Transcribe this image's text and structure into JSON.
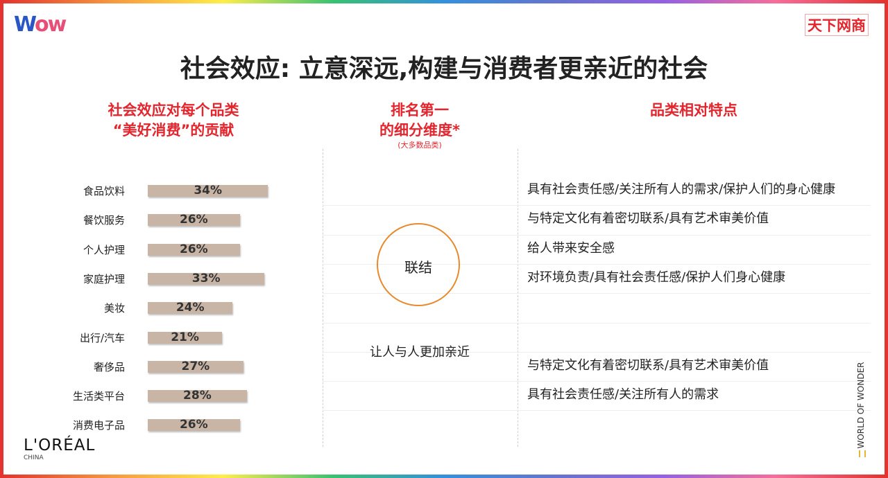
{
  "logos": {
    "wow": "WOW",
    "right": "天下网商",
    "loreal": "L'ORÉAL",
    "loreal_sub": "CHINA",
    "vertical": "WORLD OF WONDER"
  },
  "title": "社会效应: 立意深远,构建与消费者更亲近的社会",
  "headers": {
    "left": [
      "社会效应对每个品类",
      "“美好消费”的贡献"
    ],
    "middle": [
      "排名第一",
      "的细分维度*"
    ],
    "middle_note": "(大多数品类)",
    "right": "品类相对特点"
  },
  "chart_data": {
    "type": "bar",
    "orientation": "horizontal",
    "categories": [
      "食品饮料",
      "餐饮服务",
      "个人护理",
      "家庭护理",
      "美妆",
      "出行/汽车",
      "奢侈品",
      "生活类平台",
      "消费电子品"
    ],
    "values": [
      34,
      26,
      26,
      33,
      24,
      21,
      27,
      28,
      26
    ],
    "labels": [
      "34%",
      "26%",
      "26%",
      "33%",
      "24%",
      "21%",
      "27%",
      "28%",
      "26%"
    ],
    "color": "#c8b5a6"
  },
  "center": {
    "circle_label": "联结",
    "text": "让人与人更加亲近"
  },
  "features": [
    "具有社会责任感/关注所有人的需求/保护人们的身心健康",
    "与特定文化有着密切联系/具有艺术审美价值",
    "给人带来安全感",
    "对环境负责/具有社会责任感/保护人们身心健康",
    "",
    "",
    "与特定文化有着密切联系/具有艺术审美价值",
    "具有社会责任感/关注所有人的需求",
    ""
  ],
  "colors": {
    "accent": "#e3262e",
    "circle": "#e8892d"
  }
}
